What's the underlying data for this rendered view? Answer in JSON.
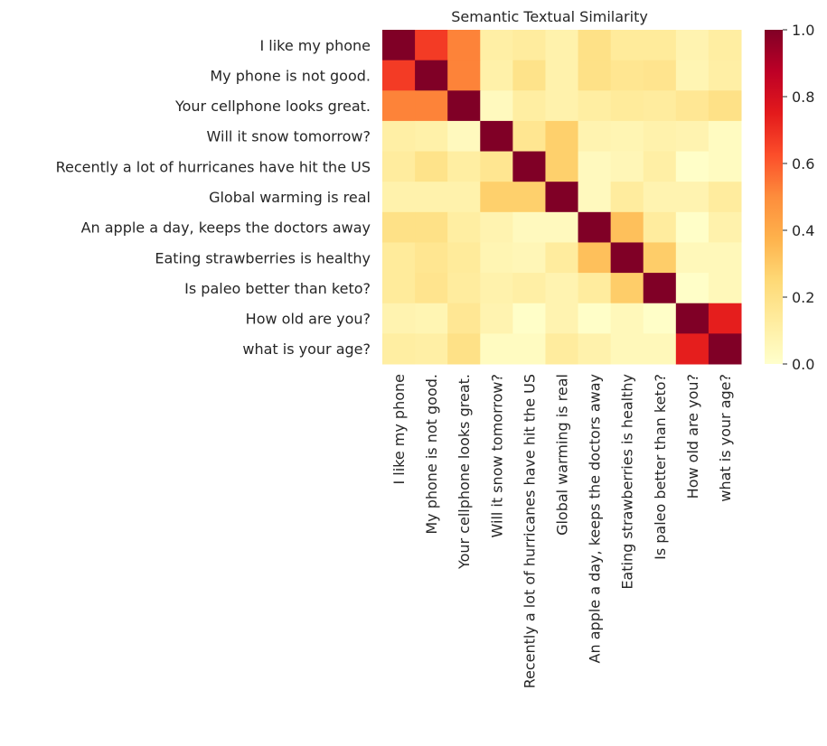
{
  "chart_data": {
    "type": "heatmap",
    "title": "Semantic Textual Similarity",
    "labels": [
      "I like my phone",
      "My phone is not good.",
      "Your cellphone looks great.",
      "Will it snow tomorrow?",
      "Recently a lot of hurricanes have hit the US",
      "Global warming is real",
      "An apple a day, keeps the doctors away",
      "Eating strawberries is healthy",
      "Is paleo better than keto?",
      "How old are you?",
      "what is your age?"
    ],
    "values": [
      [
        1.0,
        0.67,
        0.52,
        0.11,
        0.13,
        0.09,
        0.2,
        0.14,
        0.14,
        0.08,
        0.12
      ],
      [
        0.67,
        1.0,
        0.52,
        0.1,
        0.19,
        0.09,
        0.2,
        0.17,
        0.18,
        0.07,
        0.11
      ],
      [
        0.52,
        0.52,
        1.0,
        0.04,
        0.12,
        0.09,
        0.12,
        0.14,
        0.13,
        0.16,
        0.2
      ],
      [
        0.11,
        0.1,
        0.04,
        1.0,
        0.17,
        0.28,
        0.08,
        0.07,
        0.09,
        0.08,
        0.03
      ],
      [
        0.13,
        0.19,
        0.12,
        0.17,
        1.0,
        0.28,
        0.04,
        0.06,
        0.11,
        0.01,
        0.03
      ],
      [
        0.09,
        0.09,
        0.09,
        0.28,
        0.28,
        1.0,
        0.04,
        0.13,
        0.08,
        0.08,
        0.13
      ],
      [
        0.2,
        0.2,
        0.12,
        0.08,
        0.04,
        0.04,
        1.0,
        0.33,
        0.13,
        0.01,
        0.09
      ],
      [
        0.14,
        0.17,
        0.14,
        0.07,
        0.06,
        0.13,
        0.33,
        1.0,
        0.29,
        0.05,
        0.05
      ],
      [
        0.14,
        0.18,
        0.13,
        0.09,
        0.11,
        0.08,
        0.13,
        0.29,
        1.0,
        0.01,
        0.05
      ],
      [
        0.08,
        0.07,
        0.16,
        0.08,
        0.01,
        0.08,
        0.01,
        0.05,
        0.01,
        1.0,
        0.74
      ],
      [
        0.12,
        0.11,
        0.2,
        0.03,
        0.03,
        0.13,
        0.09,
        0.05,
        0.05,
        0.74,
        1.0
      ]
    ],
    "colormap": "YlOrRd",
    "colormap_stops": [
      "#ffffcc",
      "#ffeda0",
      "#fed976",
      "#feb24c",
      "#fd8d3c",
      "#fc4e2a",
      "#e31a1c",
      "#bd0026",
      "#800026"
    ],
    "vmin": 0,
    "vmax": 1,
    "colorbar_ticks": [
      "0.0",
      "0.2",
      "0.4",
      "0.6",
      "0.8",
      "1.0"
    ],
    "legend": "right colorbar",
    "grid": false
  }
}
